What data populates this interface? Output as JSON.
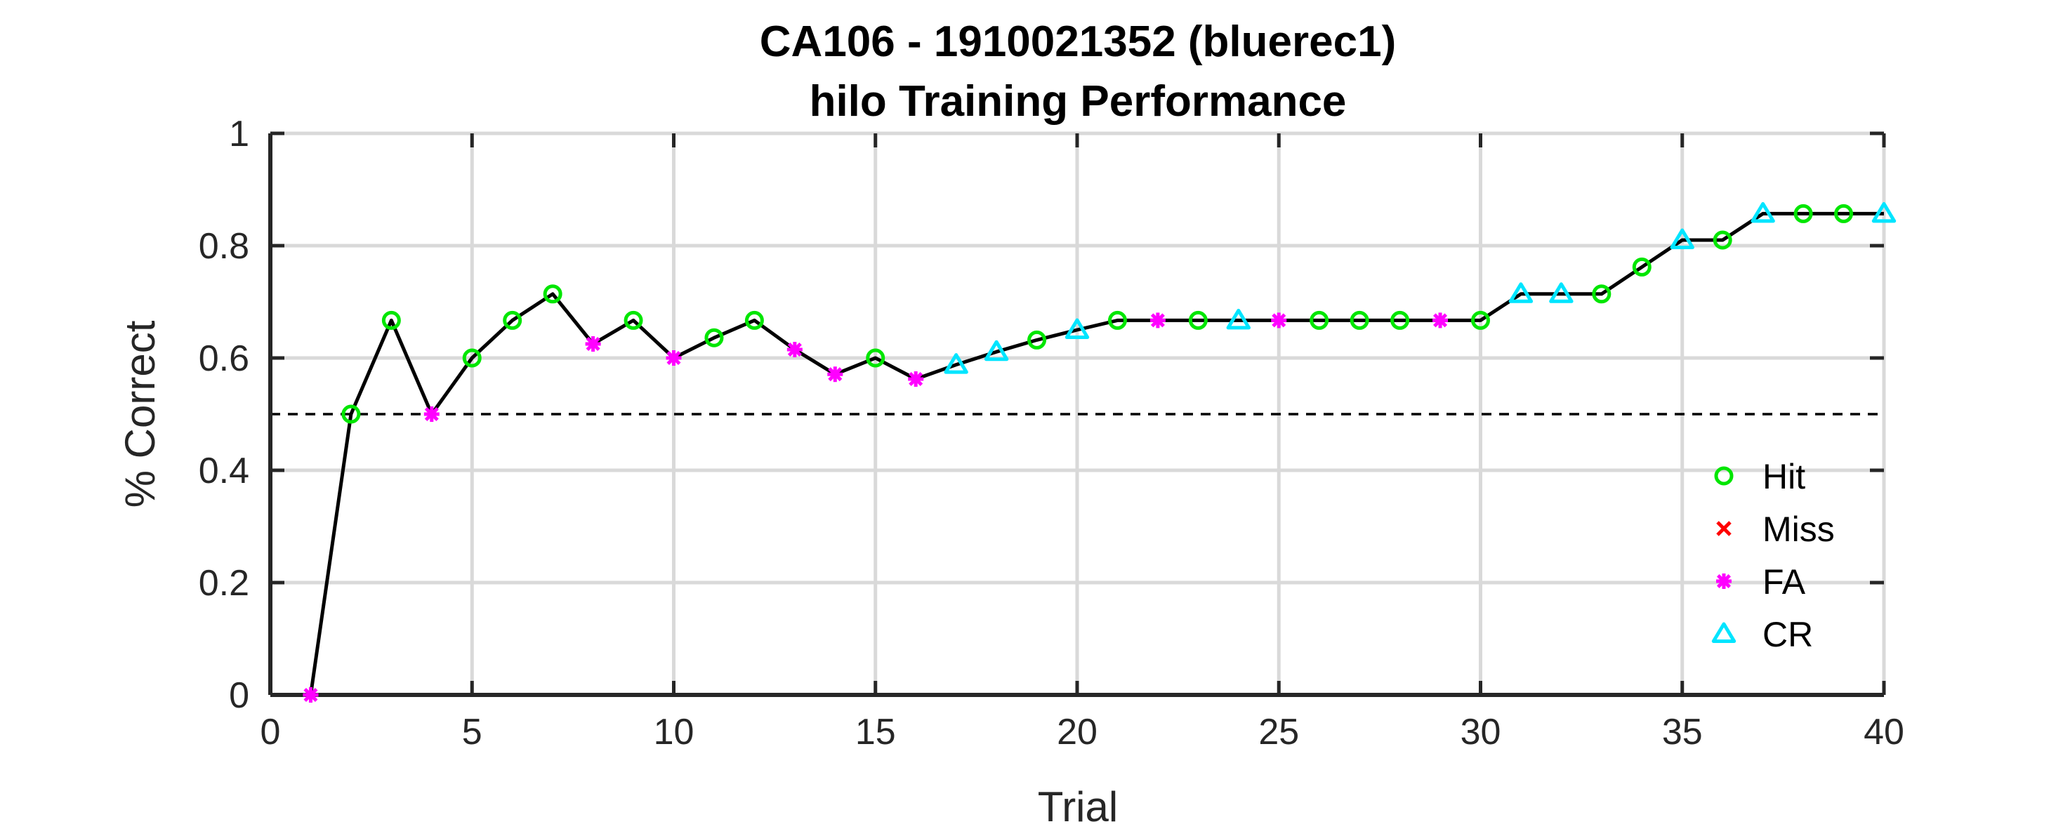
{
  "chart_data": {
    "type": "line",
    "title": "CA106 - 1910021352 (bluerec1)",
    "subtitle": "hilo Training Performance",
    "xlabel": "Trial",
    "ylabel": "% Correct",
    "xlim": [
      0,
      40
    ],
    "ylim": [
      0,
      1
    ],
    "xticks": [
      0,
      5,
      10,
      15,
      20,
      25,
      30,
      35,
      40
    ],
    "yticks": [
      0,
      0.2,
      0.4,
      0.6,
      0.8,
      1
    ],
    "xtick_labels": [
      "0",
      "5",
      "10",
      "15",
      "20",
      "25",
      "30",
      "35",
      "40"
    ],
    "ytick_labels": [
      "0",
      "0.2",
      "0.4",
      "0.6",
      "0.8",
      "1"
    ],
    "grid": true,
    "chance_line": 0.5,
    "legend_position": "bottom-right",
    "colors": {
      "line": "#000000",
      "Hit": "#00e600",
      "Miss": "#ff0000",
      "FA": "#ff00ff",
      "CR": "#00e5ff",
      "grid": "#d9d9d9",
      "axis": "#262626"
    },
    "legend": [
      {
        "name": "Hit",
        "marker": "circle"
      },
      {
        "name": "Miss",
        "marker": "x"
      },
      {
        "name": "FA",
        "marker": "asterisk"
      },
      {
        "name": "CR",
        "marker": "triangle"
      }
    ],
    "x": [
      1,
      2,
      3,
      4,
      5,
      6,
      7,
      8,
      9,
      10,
      11,
      12,
      13,
      14,
      15,
      16,
      17,
      18,
      19,
      20,
      21,
      22,
      23,
      24,
      25,
      26,
      27,
      28,
      29,
      30,
      31,
      32,
      33,
      34,
      35,
      36,
      37,
      38,
      39,
      40
    ],
    "y": [
      0,
      0.5,
      0.667,
      0.5,
      0.6,
      0.667,
      0.714,
      0.625,
      0.667,
      0.6,
      0.636,
      0.667,
      0.615,
      0.571,
      0.6,
      0.5625,
      0.588,
      0.611,
      0.632,
      0.65,
      0.667,
      0.667,
      0.667,
      0.667,
      0.667,
      0.667,
      0.667,
      0.667,
      0.667,
      0.667,
      0.714,
      0.714,
      0.714,
      0.762,
      0.81,
      0.81,
      0.857,
      0.857,
      0.857,
      0.857
    ],
    "outcomes": [
      "FA",
      "Hit",
      "Hit",
      "FA",
      "Hit",
      "Hit",
      "Hit",
      "FA",
      "Hit",
      "FA",
      "Hit",
      "Hit",
      "FA",
      "FA",
      "Hit",
      "FA",
      "CR",
      "CR",
      "Hit",
      "CR",
      "Hit",
      "FA",
      "Hit",
      "CR",
      "FA",
      "Hit",
      "Hit",
      "Hit",
      "FA",
      "Hit",
      "CR",
      "CR",
      "Hit",
      "Hit",
      "CR",
      "Hit",
      "CR",
      "Hit",
      "Hit",
      "CR"
    ]
  }
}
